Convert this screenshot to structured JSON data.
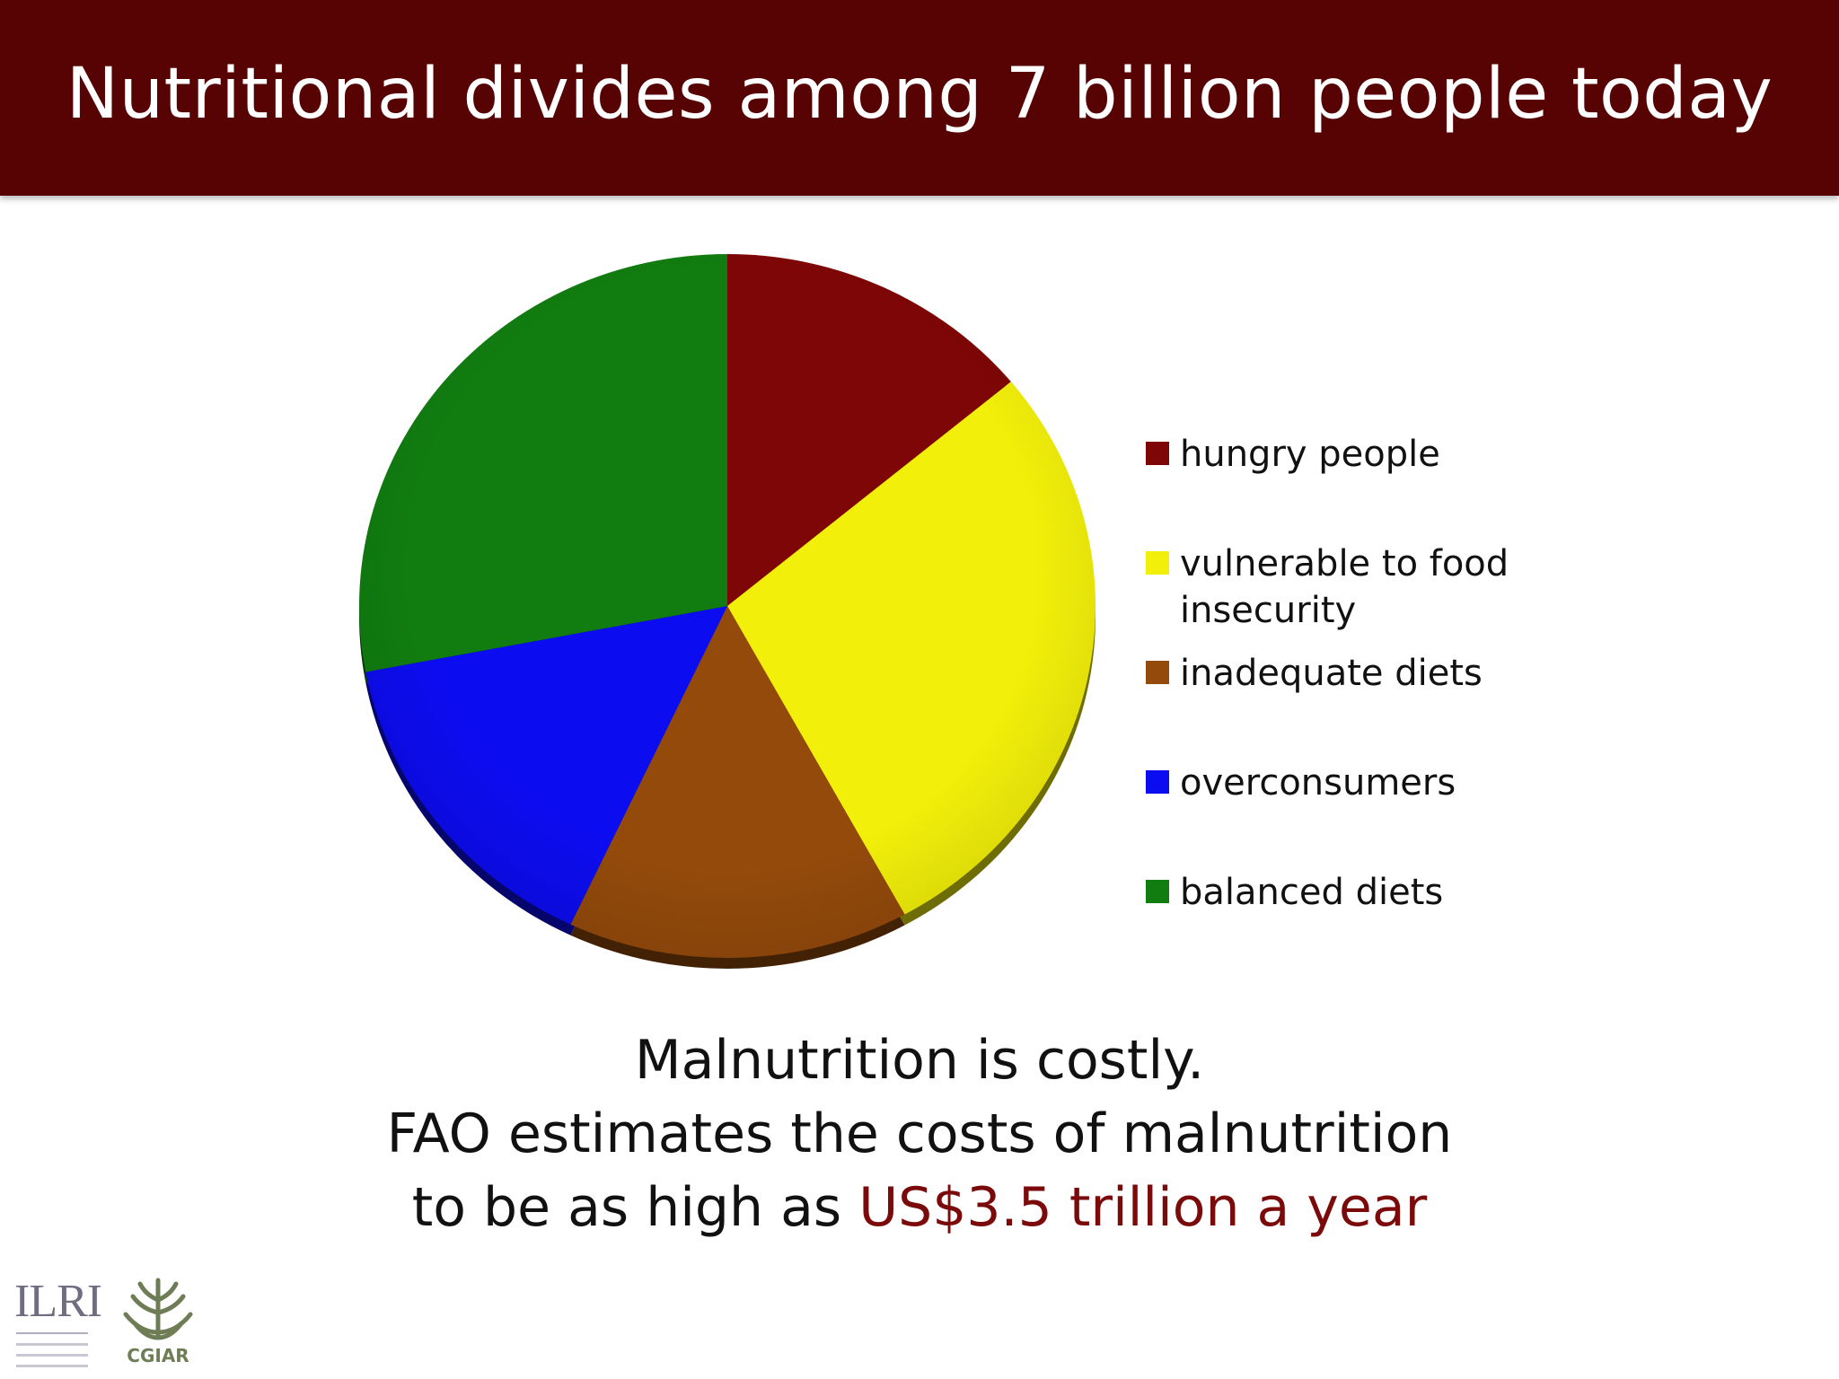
{
  "slide": {
    "title": "Nutritional divides among 7 billion people today",
    "caption_lines": [
      "Malnutrition is costly.",
      "FAO estimates the costs of malnutrition",
      "to be as high as"
    ],
    "caption_highlight": "US$3.5 trillion a year",
    "logos": {
      "ilri": "ILRI",
      "cgiar": "CGIAR"
    },
    "colors": {
      "title_bar": "#570303",
      "highlight": "#7b0a0a"
    }
  },
  "chart_data": {
    "type": "pie",
    "title": "",
    "legend_position": "right",
    "categories": [
      "hungry people",
      "vulnerable to food insecurity",
      "inadequate diets",
      "overconsumers",
      "balanced diets"
    ],
    "values": [
      14,
      28,
      15,
      15,
      28
    ],
    "colors": [
      "#7f0606",
      "#f2ef0a",
      "#944a0b",
      "#0c0cf0",
      "#117d10"
    ]
  }
}
